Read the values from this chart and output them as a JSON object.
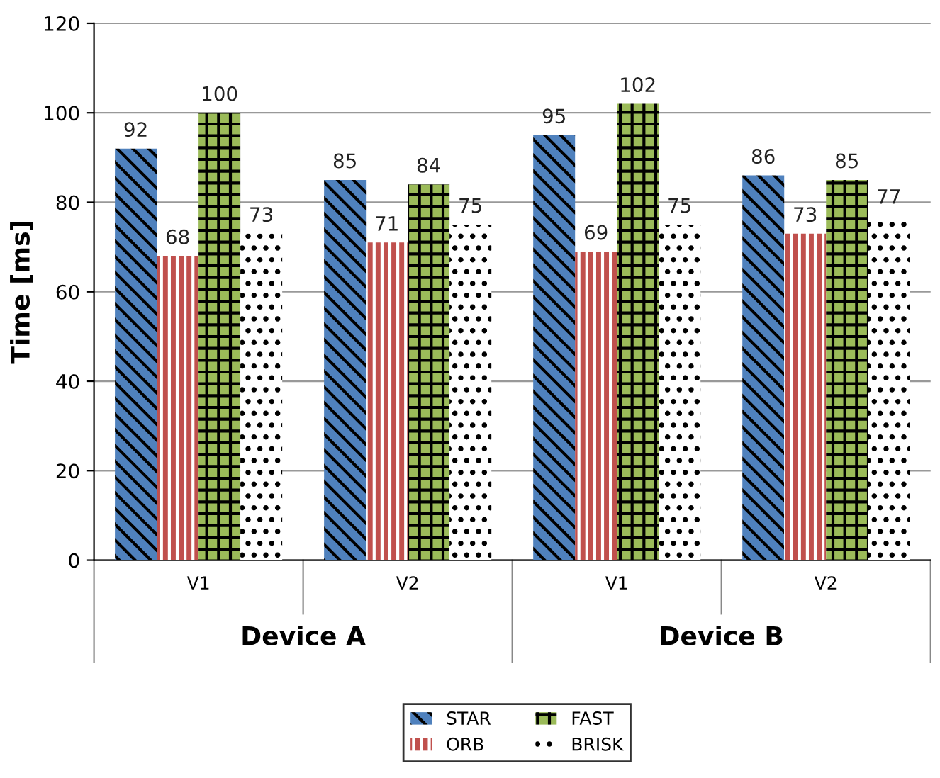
{
  "chart_data": {
    "type": "bar",
    "ylabel": "Time [ms]",
    "categories": [
      "V1",
      "V2",
      "V1",
      "V2"
    ],
    "series": [
      {
        "name": "STAR",
        "color": "#4f81bd",
        "values": [
          92,
          85,
          95,
          86
        ]
      },
      {
        "name": "ORB",
        "color": "#c0504d",
        "values": [
          68,
          71,
          69,
          73
        ]
      },
      {
        "name": "FAST",
        "color": "#9bbb59",
        "values": [
          100,
          84,
          102,
          85
        ]
      },
      {
        "name": "BRISK",
        "color": "#ffffff",
        "values": [
          73,
          75,
          75,
          77
        ]
      }
    ],
    "ylim": [
      0,
      120
    ],
    "yticks": [
      0,
      20,
      40,
      60,
      80,
      100,
      120
    ],
    "grid": "y",
    "legend": "bottom",
    "data_labels": true,
    "annotations": [
      "Device A",
      "Device B"
    ]
  }
}
